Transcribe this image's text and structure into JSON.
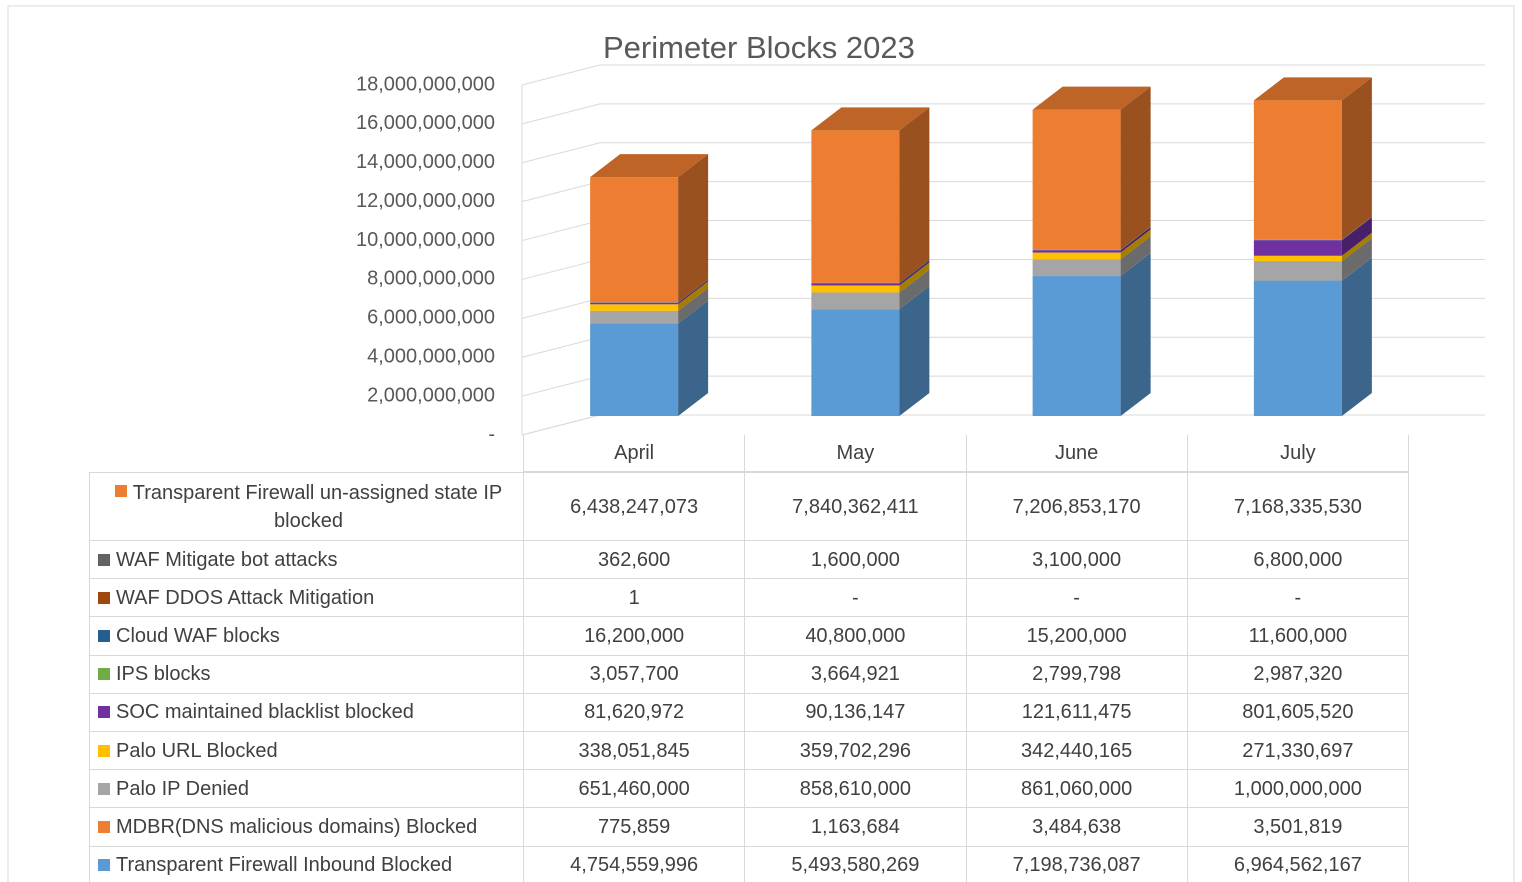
{
  "chart_data": {
    "type": "bar",
    "stacked": true,
    "title": "Perimeter Blocks 2023",
    "categories": [
      "April",
      "May",
      "June",
      "July"
    ],
    "ylim": [
      0,
      18000000000
    ],
    "yticks": [
      {
        "value": 0,
        "label": "-"
      },
      {
        "value": 2000000000,
        "label": "2,000,000,000"
      },
      {
        "value": 4000000000,
        "label": "4,000,000,000"
      },
      {
        "value": 6000000000,
        "label": "6,000,000,000"
      },
      {
        "value": 8000000000,
        "label": "8,000,000,000"
      },
      {
        "value": 10000000000,
        "label": "10,000,000,000"
      },
      {
        "value": 12000000000,
        "label": "12,000,000,000"
      },
      {
        "value": 14000000000,
        "label": "14,000,000,000"
      },
      {
        "value": 16000000000,
        "label": "16,000,000,000"
      },
      {
        "value": 18000000000,
        "label": "18,000,000,000"
      }
    ],
    "grid": true,
    "series": [
      {
        "name": "Transparent Firewall Inbound Blocked",
        "color": "#5b9bd5",
        "values": [
          4754559996,
          5493580269,
          7198736087,
          6964562167
        ],
        "value_labels": [
          "4,754,559,996",
          "5,493,580,269",
          "7,198,736,087",
          "6,964,562,167"
        ]
      },
      {
        "name": "MDBR(DNS malicious domains) Blocked",
        "color": "#ed7d31",
        "values": [
          775859,
          1163684,
          3484638,
          3501819
        ],
        "value_labels": [
          "775,859",
          "1,163,684",
          "3,484,638",
          "3,501,819"
        ]
      },
      {
        "name": "Palo IP Denied",
        "color": "#a5a5a5",
        "values": [
          651460000,
          858610000,
          861060000,
          1000000000
        ],
        "value_labels": [
          "651,460,000",
          "858,610,000",
          "861,060,000",
          "1,000,000,000"
        ]
      },
      {
        "name": "Palo URL Blocked",
        "color": "#ffc000",
        "values": [
          338051845,
          359702296,
          342440165,
          271330697
        ],
        "value_labels": [
          "338,051,845",
          "359,702,296",
          "342,440,165",
          "271,330,697"
        ]
      },
      {
        "name": "SOC maintained blacklist blocked",
        "color": "#7030a0",
        "values": [
          81620972,
          90136147,
          121611475,
          801605520
        ],
        "value_labels": [
          "81,620,972",
          "90,136,147",
          "121,611,475",
          "801,605,520"
        ]
      },
      {
        "name": "IPS blocks",
        "color": "#70ad47",
        "values": [
          3057700,
          3664921,
          2799798,
          2987320
        ],
        "value_labels": [
          "3,057,700",
          "3,664,921",
          "2,799,798",
          "2,987,320"
        ]
      },
      {
        "name": "Cloud WAF blocks",
        "color": "#255e91",
        "values": [
          16200000,
          40800000,
          15200000,
          11600000
        ],
        "value_labels": [
          "16,200,000",
          "40,800,000",
          "15,200,000",
          "11,600,000"
        ]
      },
      {
        "name": "WAF DDOS Attack Mitigation",
        "color": "#9e480e",
        "values": [
          1,
          null,
          null,
          null
        ],
        "value_labels": [
          "1",
          "-",
          "-",
          "-"
        ]
      },
      {
        "name": "WAF Mitigate bot attacks",
        "color": "#636363",
        "values": [
          362600,
          1600000,
          3100000,
          6800000
        ],
        "value_labels": [
          "362,600",
          "1,600,000",
          "3,100,000",
          "6,800,000"
        ]
      },
      {
        "name": "Transparent Firewall un-assigned state IP blocked",
        "color": "#ed7d31",
        "values": [
          6438247073,
          7840362411,
          7206853170,
          7168335530
        ],
        "value_labels": [
          "6,438,247,073",
          "7,840,362,411",
          "7,206,853,170",
          "7,168,335,530"
        ]
      }
    ]
  }
}
